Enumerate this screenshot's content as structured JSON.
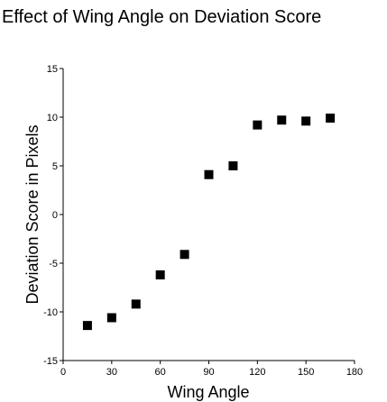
{
  "chart_data": {
    "type": "scatter",
    "title": "Effect of Wing Angle on Deviation Score",
    "xlabel": "Wing Angle",
    "ylabel": "Deviation Score in Pixels",
    "xlim": [
      0,
      180
    ],
    "ylim": [
      -15,
      15
    ],
    "xticks": [
      "0",
      "30",
      "60",
      "90",
      "120",
      "150",
      "180"
    ],
    "yticks": [
      "15",
      "10",
      "5",
      "0",
      "-5",
      "-10",
      "-15"
    ],
    "grid": false,
    "legend": "none",
    "marker": "square",
    "marker_color": "#000000",
    "points": [
      {
        "x": 15,
        "y": -11.4
      },
      {
        "x": 30,
        "y": -10.6
      },
      {
        "x": 45,
        "y": -9.2
      },
      {
        "x": 60,
        "y": -6.2
      },
      {
        "x": 75,
        "y": -4.1
      },
      {
        "x": 90,
        "y": 4.1
      },
      {
        "x": 105,
        "y": 5.0
      },
      {
        "x": 120,
        "y": 9.2
      },
      {
        "x": 135,
        "y": 9.7
      },
      {
        "x": 150,
        "y": 9.6
      },
      {
        "x": 165,
        "y": 9.9
      }
    ]
  }
}
